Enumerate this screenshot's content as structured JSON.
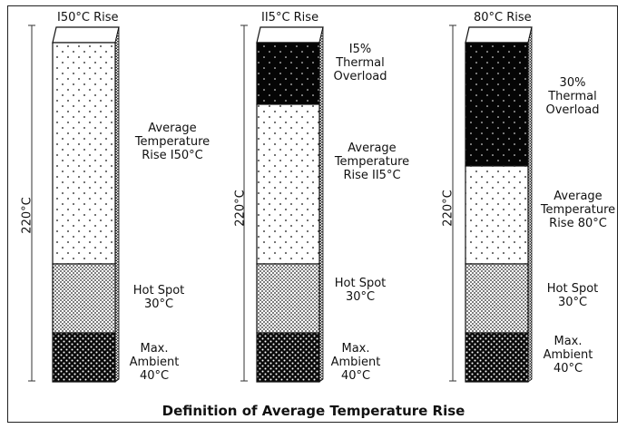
{
  "columns": [
    {
      "top_label": "I50°C Rise",
      "axis_label": "220°C",
      "segments": [
        {
          "id": "avg",
          "label": "Average\nTemperature\nRise I50°C"
        },
        {
          "id": "hot",
          "label": "Hot Spot\n30°C"
        },
        {
          "id": "amb",
          "label": "Max.\nAmbient\n40°C"
        }
      ]
    },
    {
      "top_label": "II5°C Rise",
      "axis_label": "220°C",
      "segments": [
        {
          "id": "over",
          "label": "I5%\nThermal\nOverload"
        },
        {
          "id": "avg",
          "label": "Average\nTemperature\nRise II5°C"
        },
        {
          "id": "hot",
          "label": "Hot Spot\n30°C"
        },
        {
          "id": "amb",
          "label": "Max.\nAmbient\n40°C"
        }
      ]
    },
    {
      "top_label": "80°C Rise",
      "axis_label": "220°C",
      "segments": [
        {
          "id": "over",
          "label": "30%\nThermal\nOverload"
        },
        {
          "id": "avg",
          "label": "Average\nTemperature\nRise 80°C"
        },
        {
          "id": "hot",
          "label": "Hot Spot\n30°C"
        },
        {
          "id": "amb",
          "label": "Max.\nAmbient\n40°C"
        }
      ]
    }
  ],
  "caption": "Definition of Average Temperature Rise"
}
